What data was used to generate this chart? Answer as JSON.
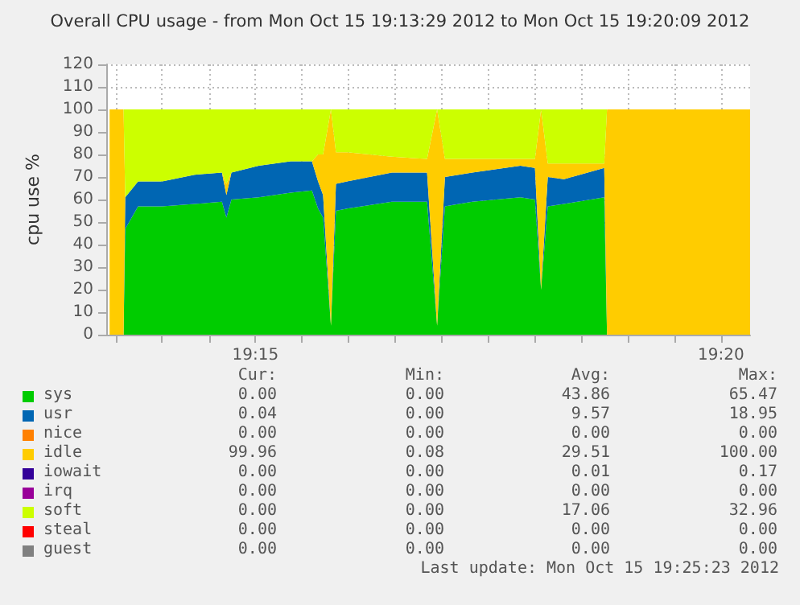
{
  "chart_data": {
    "type": "area",
    "stacked": true,
    "title": "Overall CPU usage - from Mon Oct 15 19:13:29 2012 to Mon Oct 15 19:20:09 2012",
    "ylabel": "cpu use %",
    "x": [
      19.2239,
      19.2264,
      19.2267,
      19.229,
      19.2333,
      19.2391,
      19.244,
      19.2448,
      19.2457,
      19.2506,
      19.2563,
      19.2601,
      19.2612,
      19.2621,
      19.2635,
      19.2644,
      19.2664,
      19.2744,
      19.2807,
      19.2825,
      19.2839,
      19.2888,
      19.2974,
      19.3,
      19.3011,
      19.3023,
      19.3052,
      19.3124,
      19.3129,
      19.3385
    ],
    "series": [
      {
        "name": "sys",
        "color": "#00cc00",
        "values": [
          0,
          0,
          47,
          57,
          57,
          58,
          59,
          52,
          60,
          61,
          63,
          64,
          56,
          52,
          4,
          55,
          56,
          59,
          59,
          4,
          57,
          59,
          61,
          60,
          20,
          57,
          58,
          61,
          0,
          0
        ]
      },
      {
        "name": "usr",
        "color": "#0066b3",
        "values": [
          0,
          0,
          14,
          11,
          11,
          13,
          13,
          10,
          12,
          14,
          14,
          13,
          12,
          10,
          0,
          12,
          12,
          13,
          13,
          0,
          13,
          13,
          14,
          14,
          0,
          13,
          11,
          13,
          0,
          0
        ]
      },
      {
        "name": "nice",
        "color": "#ff8000",
        "values": [
          null,
          null,
          null,
          null,
          null,
          null,
          null,
          null,
          null,
          null,
          null,
          null,
          null,
          null,
          null,
          null,
          null,
          null,
          null,
          null,
          null,
          null,
          null,
          null,
          null,
          null,
          null,
          null,
          null,
          null
        ]
      },
      {
        "name": "idle",
        "color": "#ffcc00",
        "values": [
          100,
          100,
          0,
          0,
          0,
          0,
          0,
          5,
          0,
          0,
          0,
          0,
          12,
          18,
          96,
          14,
          13,
          7,
          6,
          96,
          8,
          6,
          3,
          4,
          80,
          6,
          7,
          2,
          100,
          100
        ]
      },
      {
        "name": "iowait",
        "color": "#330099",
        "values": [
          null,
          null,
          null,
          null,
          null,
          null,
          null,
          null,
          null,
          null,
          null,
          null,
          null,
          null,
          null,
          null,
          null,
          null,
          null,
          null,
          null,
          null,
          null,
          null,
          null,
          null,
          null,
          null,
          null,
          null
        ]
      },
      {
        "name": "irq",
        "color": "#990099",
        "values": [
          null,
          null,
          null,
          null,
          null,
          null,
          null,
          null,
          null,
          null,
          null,
          null,
          null,
          null,
          null,
          null,
          null,
          null,
          null,
          null,
          null,
          null,
          null,
          null,
          null,
          null,
          null,
          null,
          null,
          null
        ]
      },
      {
        "name": "soft",
        "color": "#ccff00",
        "values": [
          0,
          0,
          39,
          32,
          32,
          29,
          28,
          33,
          28,
          25,
          23,
          23,
          20,
          20,
          0,
          19,
          19,
          21,
          22,
          0,
          22,
          22,
          22,
          22,
          0,
          24,
          24,
          24,
          0,
          0
        ]
      },
      {
        "name": "steal",
        "color": "#ff0000",
        "values": [
          null,
          null,
          null,
          null,
          null,
          null,
          null,
          null,
          null,
          null,
          null,
          null,
          null,
          null,
          null,
          null,
          null,
          null,
          null,
          null,
          null,
          null,
          null,
          null,
          null,
          null,
          null,
          null,
          null,
          null
        ]
      },
      {
        "name": "guest",
        "color": "#808080",
        "values": [
          null,
          null,
          null,
          null,
          null,
          null,
          null,
          null,
          null,
          null,
          null,
          null,
          null,
          null,
          null,
          null,
          null,
          null,
          null,
          null,
          null,
          null,
          null,
          null,
          null,
          null,
          null,
          null,
          null,
          null
        ]
      }
    ],
    "xlim": [
      19.2233,
      19.3385
    ],
    "xticks": [
      {
        "value": 19.225,
        "label": null
      },
      {
        "value": 19.2333,
        "label": null
      },
      {
        "value": 19.2417,
        "label": null
      },
      {
        "value": 19.25,
        "label": "19:15"
      },
      {
        "value": 19.2583,
        "label": null
      },
      {
        "value": 19.2667,
        "label": null
      },
      {
        "value": 19.275,
        "label": null
      },
      {
        "value": 19.2833,
        "label": null
      },
      {
        "value": 19.2917,
        "label": null
      },
      {
        "value": 19.3,
        "label": null
      },
      {
        "value": 19.3083,
        "label": null
      },
      {
        "value": 19.3167,
        "label": null
      },
      {
        "value": 19.325,
        "label": null
      },
      {
        "value": 19.3333,
        "label": "19:20"
      }
    ],
    "ylim": [
      0,
      120
    ],
    "yticks": [
      0,
      10,
      20,
      30,
      40,
      50,
      60,
      70,
      80,
      90,
      100,
      110,
      120
    ],
    "grid": true,
    "legend": "bottom",
    "annotations": [
      "Cur:",
      "Min:",
      "Avg:",
      "Max:",
      "0.00",
      "0.00",
      "43.86",
      "65.47",
      "0.04",
      "0.00",
      "9.57",
      "18.95",
      "0.00",
      "0.00",
      "0.00",
      "0.00",
      "99.96",
      "0.08",
      "29.51",
      "100.00",
      "0.00",
      "0.00",
      "0.01",
      "0.17",
      "0.00",
      "0.00",
      "0.00",
      "0.00",
      "0.00",
      "0.00",
      "17.06",
      "32.96",
      "0.00",
      "0.00",
      "0.00",
      "0.00",
      "0.00",
      "0.00",
      "0.00",
      "0.00",
      "Last update: Mon Oct 15 19:25:23 2012"
    ]
  }
}
